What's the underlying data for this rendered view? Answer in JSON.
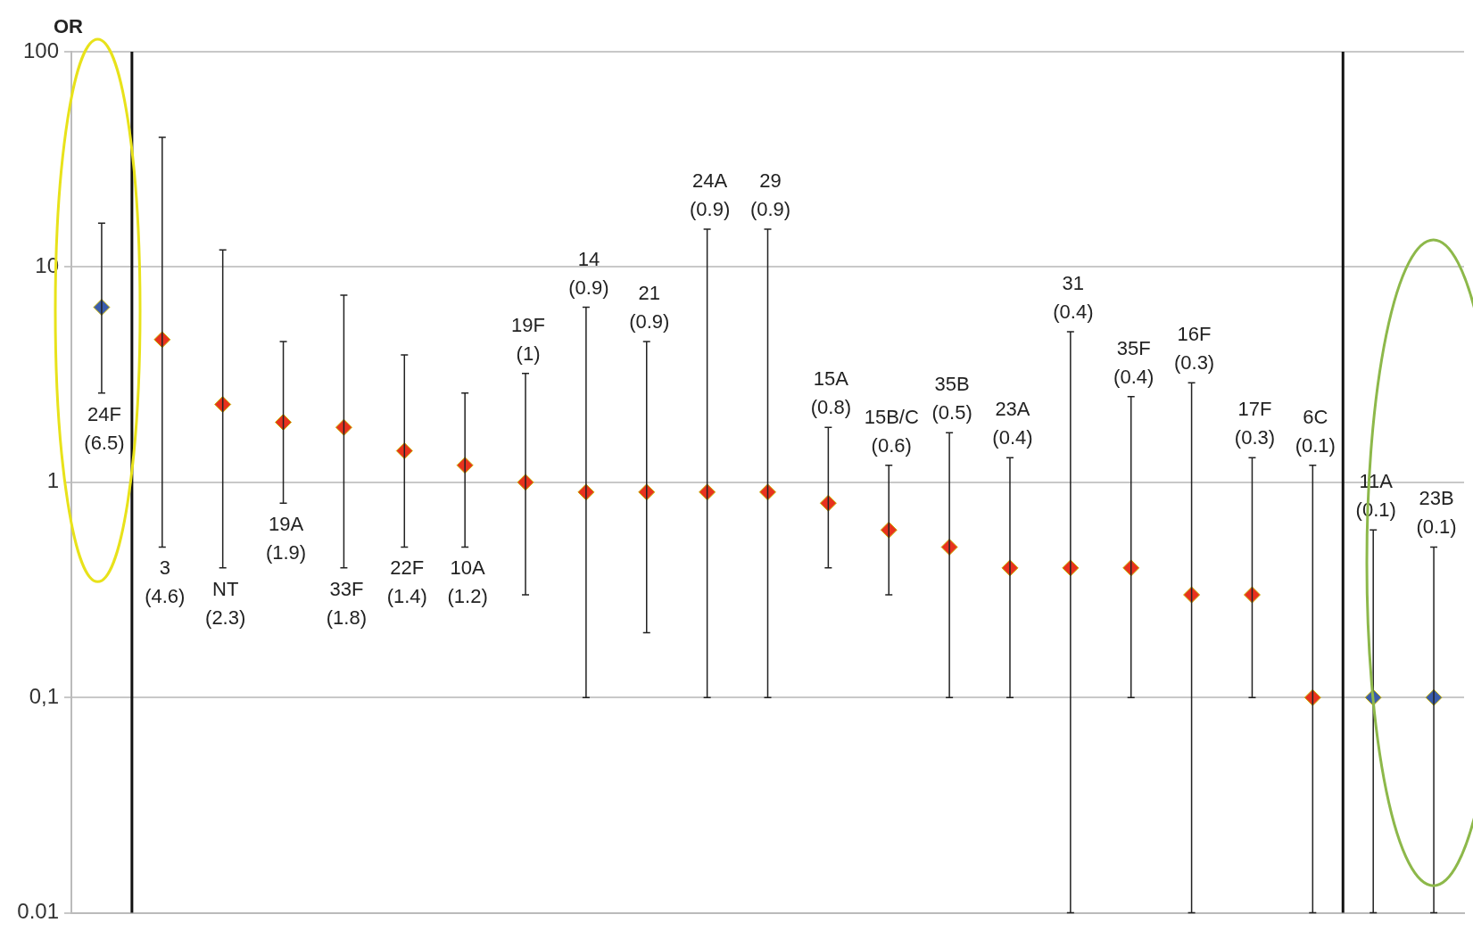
{
  "chart_data": {
    "type": "scatter",
    "ylabel": "OR",
    "categories": [
      null,
      null,
      null,
      null,
      null,
      null,
      null,
      null,
      null,
      null,
      null,
      null,
      null,
      null,
      null,
      null,
      null,
      null,
      null,
      null,
      null,
      null,
      null
    ],
    "values": [
      6.5,
      4.6,
      2.3,
      1.9,
      1.8,
      1.4,
      1.2,
      1,
      0.9,
      0.9,
      0.9,
      0.9,
      0.8,
      0.6,
      0.5,
      0.4,
      0.4,
      0.4,
      0.3,
      0.3,
      0.1,
      0.1,
      0.1
    ],
    "errors": [
      [
        2.6,
        16
      ],
      [
        0.5,
        40
      ],
      [
        0.4,
        12
      ],
      [
        0.8,
        4.5
      ],
      [
        0.4,
        7.4
      ],
      [
        0.5,
        3.9
      ],
      [
        0.5,
        2.6
      ],
      [
        0.3,
        3.2
      ],
      [
        0.1,
        6.5
      ],
      [
        0.2,
        4.5
      ],
      [
        0.1,
        15
      ],
      [
        0.1,
        15
      ],
      [
        0.4,
        1.8
      ],
      [
        0.3,
        1.2
      ],
      [
        0.1,
        1.7
      ],
      [
        0.1,
        1.3
      ],
      [
        0.01,
        5
      ],
      [
        0.1,
        2.5
      ],
      [
        0.01,
        2.9
      ],
      [
        0.1,
        1.3
      ],
      [
        0.01,
        1.2
      ],
      [
        0.01,
        0.6
      ],
      [
        0.01,
        0.5
      ]
    ],
    "colors": [
      "#3b5cab",
      "#e8321e",
      "#e8321e",
      "#e8321e",
      "#e8321e",
      "#e8321e",
      "#e8321e",
      "#e8321e",
      "#e8321e",
      "#e8321e",
      "#e8321e",
      "#e8321e",
      "#e8321e",
      "#e8321e",
      "#e8321e",
      "#e8321e",
      "#e8321e",
      "#e8321e",
      "#e8321e",
      "#e8321e",
      "#e8321e",
      "#3b5cab",
      "#3b5cab"
    ],
    "annotations": [
      "24F (6.5)",
      "3 (4.6)",
      "NT (2.3)",
      "19A (1.9)",
      "33F (1.8)",
      "22F (1.4)",
      "10A (1.2)",
      "19F (1)",
      "14 (0.9)",
      "21 (0.9)",
      "24A (0.9)",
      "29 (0.9)",
      "15A (0.8)",
      "15B/C (0.6)",
      "35B (0.5)",
      "23A (0.4)",
      "31 (0.4)",
      "35F (0.4)",
      "16F (0.3)",
      "17F (0.3)",
      "6C (0.1)",
      "11A (0.1)",
      "23B (0.1)"
    ],
    "ylim": [
      0.01,
      100
    ],
    "yticks": [
      {
        "value": 0.01,
        "label": "0.01"
      },
      {
        "value": 0.1,
        "label": "0,1"
      },
      1,
      10,
      100
    ],
    "log": true,
    "grid": "y",
    "legend": false,
    "marker": "diamond",
    "tick_labels": "y"
  }
}
